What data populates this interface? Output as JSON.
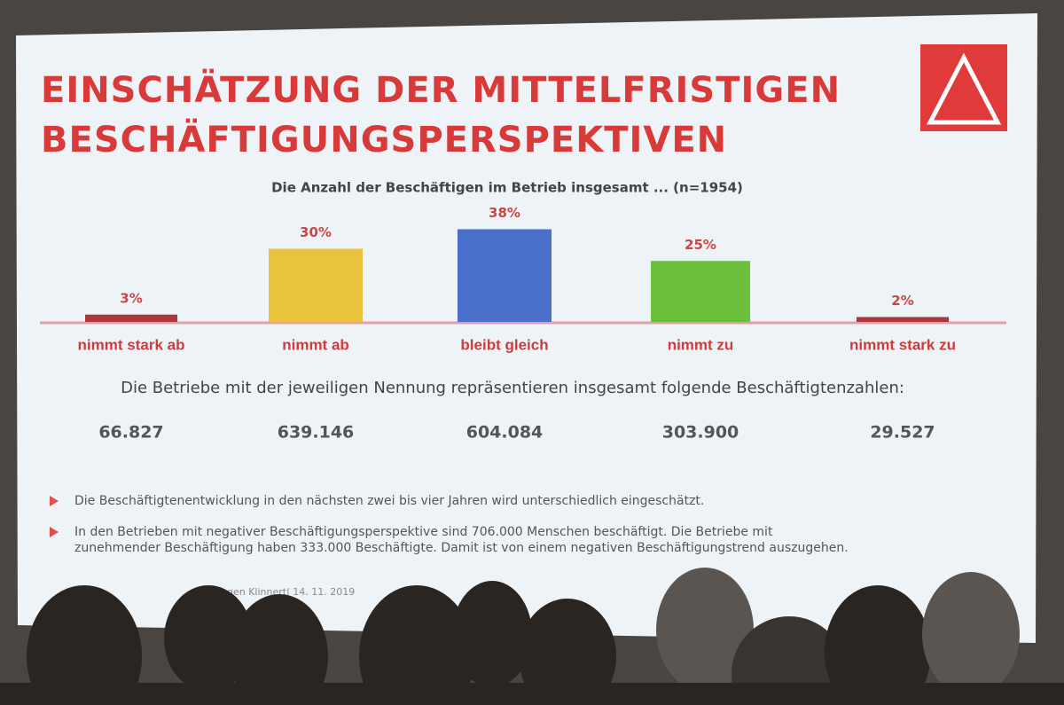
{
  "slide": {
    "title_lines": [
      "EINSCHÄTZUNG DER MITTELFRISTIGEN",
      "BESCHÄFTIGUNGSPERSPEKTIVEN"
    ],
    "employees_heading": "Die Betriebe mit der jeweiligen Nennung repräsentieren insgesamt folgende Beschäftigtenzahlen:",
    "employees": [
      "66.827",
      "639.146",
      "604.084",
      "303.900",
      "29.527"
    ],
    "bullets": [
      [
        "Die Beschäftigtenentwicklung in den nächsten zwei bis vier Jahren wird unterschiedlich eingeschätzt."
      ],
      [
        "In den Betrieben mit negativer Beschäftigungsperspektive sind 706.000 Menschen beschäftigt. Die Betriebe mit",
        "zunehmender Beschäftigung haben 333.000 Beschäftigte. Damit ist von einem negativen Beschäftigungstrend auszugehen."
      ]
    ],
    "footer": "gen Klinnert| 14. 11. 2019"
  },
  "chart_data": {
    "type": "bar",
    "subtitle": "Die Anzahl der Beschäftigen im Betrieb insgesamt ... (n=1954)",
    "categories": [
      "nimmt stark ab",
      "nimmt ab",
      "bleibt gleich",
      "nimmt zu",
      "nimmt stark zu"
    ],
    "values": [
      3,
      30,
      38,
      25,
      2
    ],
    "value_labels": [
      "3%",
      "30%",
      "38%",
      "25%",
      "2%"
    ],
    "colors": [
      "#a8383c",
      "#e9c23e",
      "#4a70cc",
      "#6cbf3a",
      "#a8383c"
    ]
  }
}
